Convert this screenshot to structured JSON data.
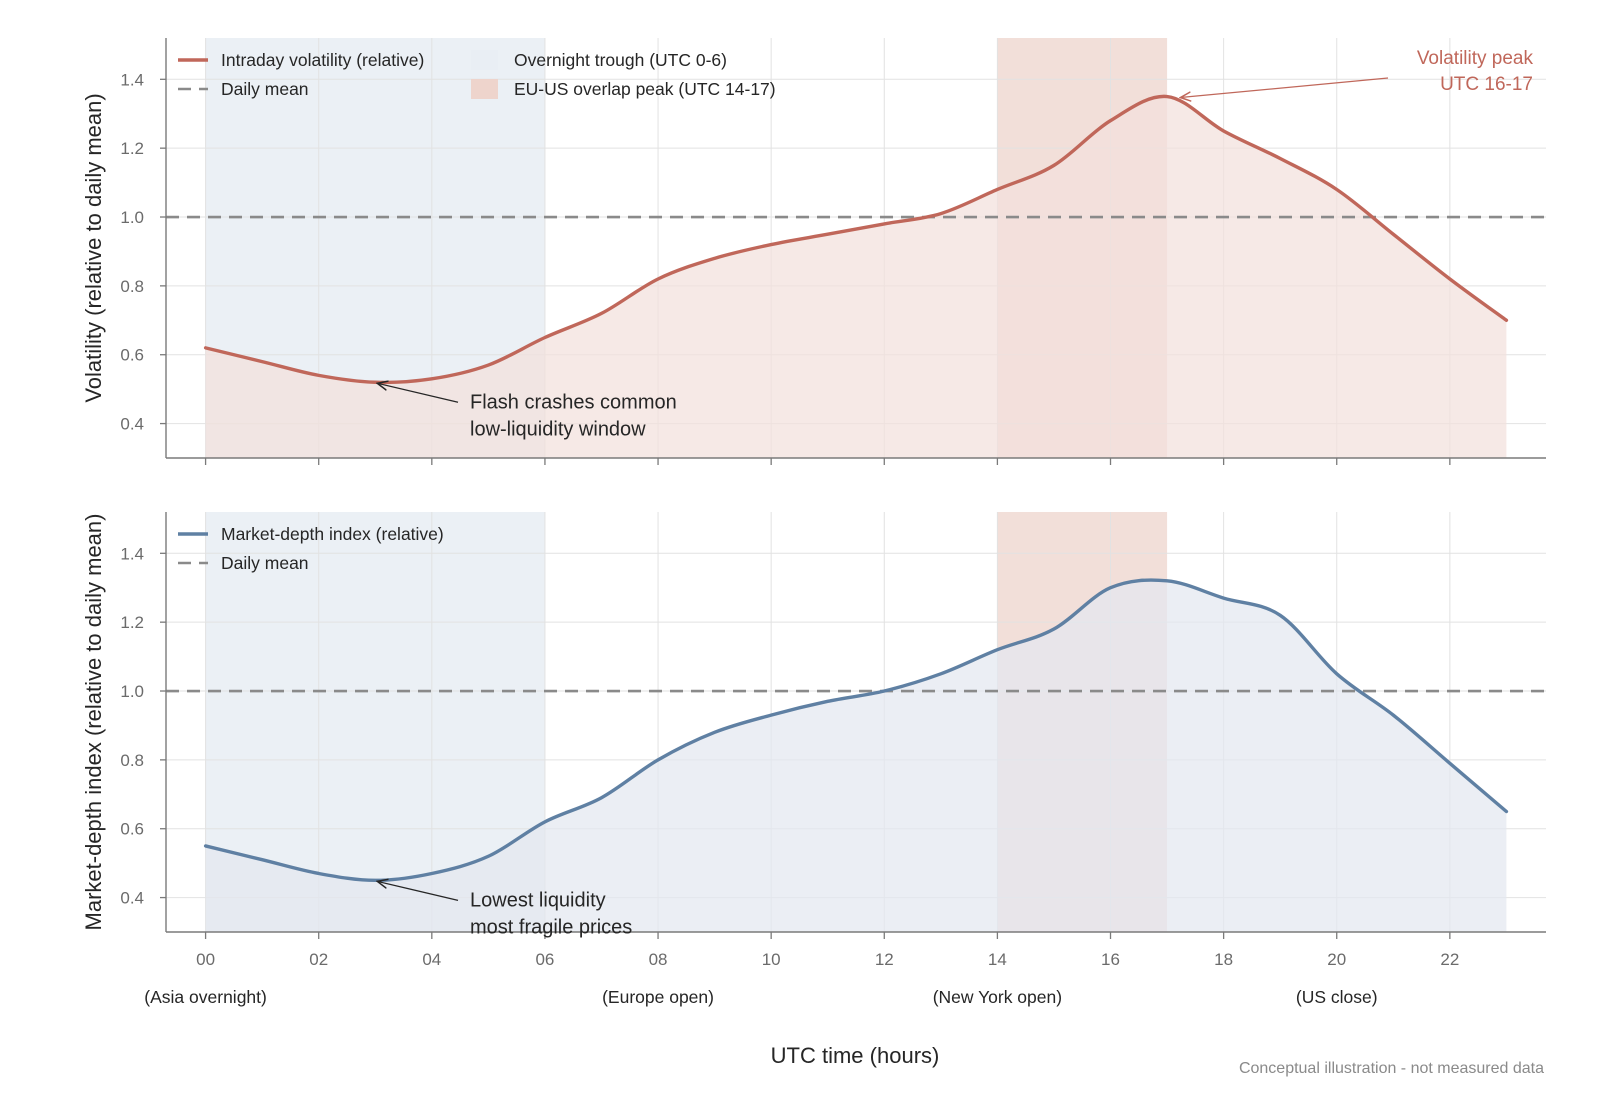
{
  "footnote": "Conceptual illustration - not measured data",
  "colors": {
    "volatility": "#c0675a",
    "volatility_fill": "#f3e1dc",
    "depth": "#5f80a3",
    "depth_fill": "#e3e8f0",
    "overnight_band": "#e9eef4",
    "overlap_band": "#eed4cc",
    "mean_line": "#8a8a8a"
  },
  "chart_data": [
    {
      "type": "area",
      "panel": "top",
      "xlabel": "",
      "ylabel": "Volatility (relative to daily mean)",
      "xlim": [
        -0.7,
        23.7
      ],
      "ylim": [
        0.3,
        1.52
      ],
      "yticks": [
        0.4,
        0.6,
        0.8,
        1.0,
        1.2,
        1.4
      ],
      "ytick_labels": [
        "0.4",
        "0.6",
        "0.8",
        "1.0",
        "1.2",
        "1.4"
      ],
      "grid": true,
      "legend_position": "top-left",
      "series": [
        {
          "name": "Intraday volatility (relative)",
          "x": [
            0,
            1,
            2,
            3,
            4,
            5,
            6,
            7,
            8,
            9,
            10,
            11,
            12,
            13,
            14,
            15,
            16,
            17,
            18,
            19,
            20,
            21,
            22,
            23
          ],
          "y": [
            0.62,
            0.58,
            0.54,
            0.52,
            0.53,
            0.57,
            0.65,
            0.72,
            0.82,
            0.88,
            0.92,
            0.95,
            0.98,
            1.01,
            1.08,
            1.15,
            1.28,
            1.35,
            1.25,
            1.17,
            1.08,
            0.95,
            0.82,
            0.7
          ]
        }
      ],
      "reference_line": {
        "name": "Daily mean",
        "y": 1.0
      },
      "bands": [
        {
          "name": "Overnight trough (UTC 0-6)",
          "x_start": 0,
          "x_end": 6
        },
        {
          "name": "EU-US overlap peak (UTC 14-17)",
          "x_start": 14,
          "x_end": 17
        }
      ],
      "annotations": [
        {
          "text_lines": [
            "Flash crashes common",
            "low-liquidity window"
          ],
          "point": [
            3,
            0.52
          ]
        },
        {
          "text_lines": [
            "Volatility peak",
            "UTC 16-17"
          ],
          "point": [
            17.2,
            1.35
          ]
        }
      ]
    },
    {
      "type": "area",
      "panel": "bottom",
      "xlabel": "UTC time (hours)",
      "ylabel": "Market-depth index (relative to daily mean)",
      "xlim": [
        -0.7,
        23.7
      ],
      "ylim": [
        0.3,
        1.52
      ],
      "xticks": [
        0,
        2,
        4,
        6,
        8,
        10,
        12,
        14,
        16,
        18,
        20,
        22
      ],
      "xtick_labels": [
        "00",
        "02",
        "04",
        "06",
        "08",
        "10",
        "12",
        "14",
        "16",
        "18",
        "20",
        "22"
      ],
      "yticks": [
        0.4,
        0.6,
        0.8,
        1.0,
        1.2,
        1.4
      ],
      "ytick_labels": [
        "0.4",
        "0.6",
        "0.8",
        "1.0",
        "1.2",
        "1.4"
      ],
      "grid": true,
      "legend_position": "top-left",
      "series": [
        {
          "name": "Market-depth index (relative)",
          "x": [
            0,
            1,
            2,
            3,
            4,
            5,
            6,
            7,
            8,
            9,
            10,
            11,
            12,
            13,
            14,
            15,
            16,
            17,
            18,
            19,
            20,
            21,
            22,
            23
          ],
          "y": [
            0.55,
            0.51,
            0.47,
            0.45,
            0.47,
            0.52,
            0.62,
            0.69,
            0.8,
            0.88,
            0.93,
            0.97,
            1.0,
            1.05,
            1.12,
            1.18,
            1.3,
            1.32,
            1.27,
            1.22,
            1.05,
            0.93,
            0.79,
            0.65
          ]
        }
      ],
      "reference_line": {
        "name": "Daily mean",
        "y": 1.0
      },
      "bands": [
        {
          "x_start": 0,
          "x_end": 6
        },
        {
          "x_start": 14,
          "x_end": 17
        }
      ],
      "annotations": [
        {
          "text_lines": [
            "Lowest liquidity",
            "most fragile prices"
          ],
          "point": [
            3,
            0.45
          ]
        }
      ],
      "session_labels": [
        {
          "x": 0,
          "text": "(Asia overnight)"
        },
        {
          "x": 8,
          "text": "(Europe open)"
        },
        {
          "x": 14,
          "text": "(New York open)"
        },
        {
          "x": 20,
          "text": "(US close)"
        }
      ]
    }
  ]
}
